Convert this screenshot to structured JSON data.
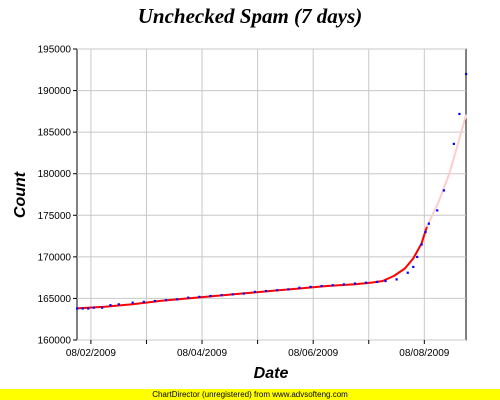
{
  "chart_data": {
    "type": "scatter",
    "title": "Unchecked Spam (7 days)",
    "xlabel": "Date",
    "ylabel": "Count",
    "ylim": [
      160000,
      195000
    ],
    "yticks": [
      160000,
      165000,
      170000,
      175000,
      180000,
      185000,
      190000,
      195000
    ],
    "xlim": [
      0,
      7.0
    ],
    "xtick_labels": [
      {
        "x": 0.25,
        "label": "08/02/2009"
      },
      {
        "x": 2.25,
        "label": "08/04/2009"
      },
      {
        "x": 4.25,
        "label": "08/06/2009"
      },
      {
        "x": 6.25,
        "label": "08/08/2009"
      }
    ],
    "xticks_minor": [
      1.25,
      3.25,
      5.25
    ],
    "grid": true,
    "series": [
      {
        "color": "#0000ff",
        "marker": "dot",
        "points": [
          [
            0.0,
            163800
          ],
          [
            0.1,
            163800
          ],
          [
            0.2,
            163800
          ],
          [
            0.3,
            163900
          ],
          [
            0.45,
            163900
          ],
          [
            0.6,
            164200
          ],
          [
            0.75,
            164300
          ],
          [
            1.0,
            164500
          ],
          [
            1.2,
            164600
          ],
          [
            1.4,
            164700
          ],
          [
            1.6,
            164800
          ],
          [
            1.8,
            164900
          ],
          [
            2.0,
            165100
          ],
          [
            2.2,
            165200
          ],
          [
            2.4,
            165300
          ],
          [
            2.6,
            165400
          ],
          [
            2.8,
            165500
          ],
          [
            3.0,
            165600
          ],
          [
            3.2,
            165800
          ],
          [
            3.4,
            165900
          ],
          [
            3.6,
            166000
          ],
          [
            3.8,
            166100
          ],
          [
            4.0,
            166300
          ],
          [
            4.2,
            166400
          ],
          [
            4.4,
            166500
          ],
          [
            4.6,
            166600
          ],
          [
            4.8,
            166700
          ],
          [
            5.0,
            166800
          ],
          [
            5.2,
            166900
          ],
          [
            5.4,
            167000
          ],
          [
            5.55,
            167100
          ],
          [
            5.75,
            167300
          ],
          [
            5.95,
            168100
          ],
          [
            6.05,
            168800
          ],
          [
            6.12,
            170000
          ],
          [
            6.2,
            171500
          ],
          [
            6.27,
            173000
          ],
          [
            6.33,
            174000
          ],
          [
            6.48,
            175600
          ],
          [
            6.6,
            178000
          ],
          [
            6.78,
            183600
          ],
          [
            6.88,
            187200
          ],
          [
            7.0,
            192000
          ]
        ]
      },
      {
        "color": "#ff0000",
        "marker": "line",
        "points": [
          [
            0.0,
            163800
          ],
          [
            0.5,
            164000
          ],
          [
            1.0,
            164300
          ],
          [
            1.5,
            164700
          ],
          [
            2.0,
            165000
          ],
          [
            2.5,
            165300
          ],
          [
            3.0,
            165600
          ],
          [
            3.5,
            165900
          ],
          [
            4.0,
            166200
          ],
          [
            4.5,
            166500
          ],
          [
            5.0,
            166700
          ],
          [
            5.3,
            166900
          ],
          [
            5.5,
            167100
          ],
          [
            5.7,
            167700
          ],
          [
            5.9,
            168600
          ],
          [
            6.05,
            169800
          ],
          [
            6.2,
            171600
          ],
          [
            6.3,
            173700
          ]
        ]
      },
      {
        "color": "#ffcccc",
        "marker": "line",
        "points": [
          [
            6.3,
            173700
          ],
          [
            6.5,
            176500
          ],
          [
            6.7,
            180000
          ],
          [
            6.85,
            183500
          ],
          [
            7.0,
            187000
          ]
        ]
      }
    ]
  },
  "footer": "ChartDirector (unregistered) from www.advsofteng.com"
}
